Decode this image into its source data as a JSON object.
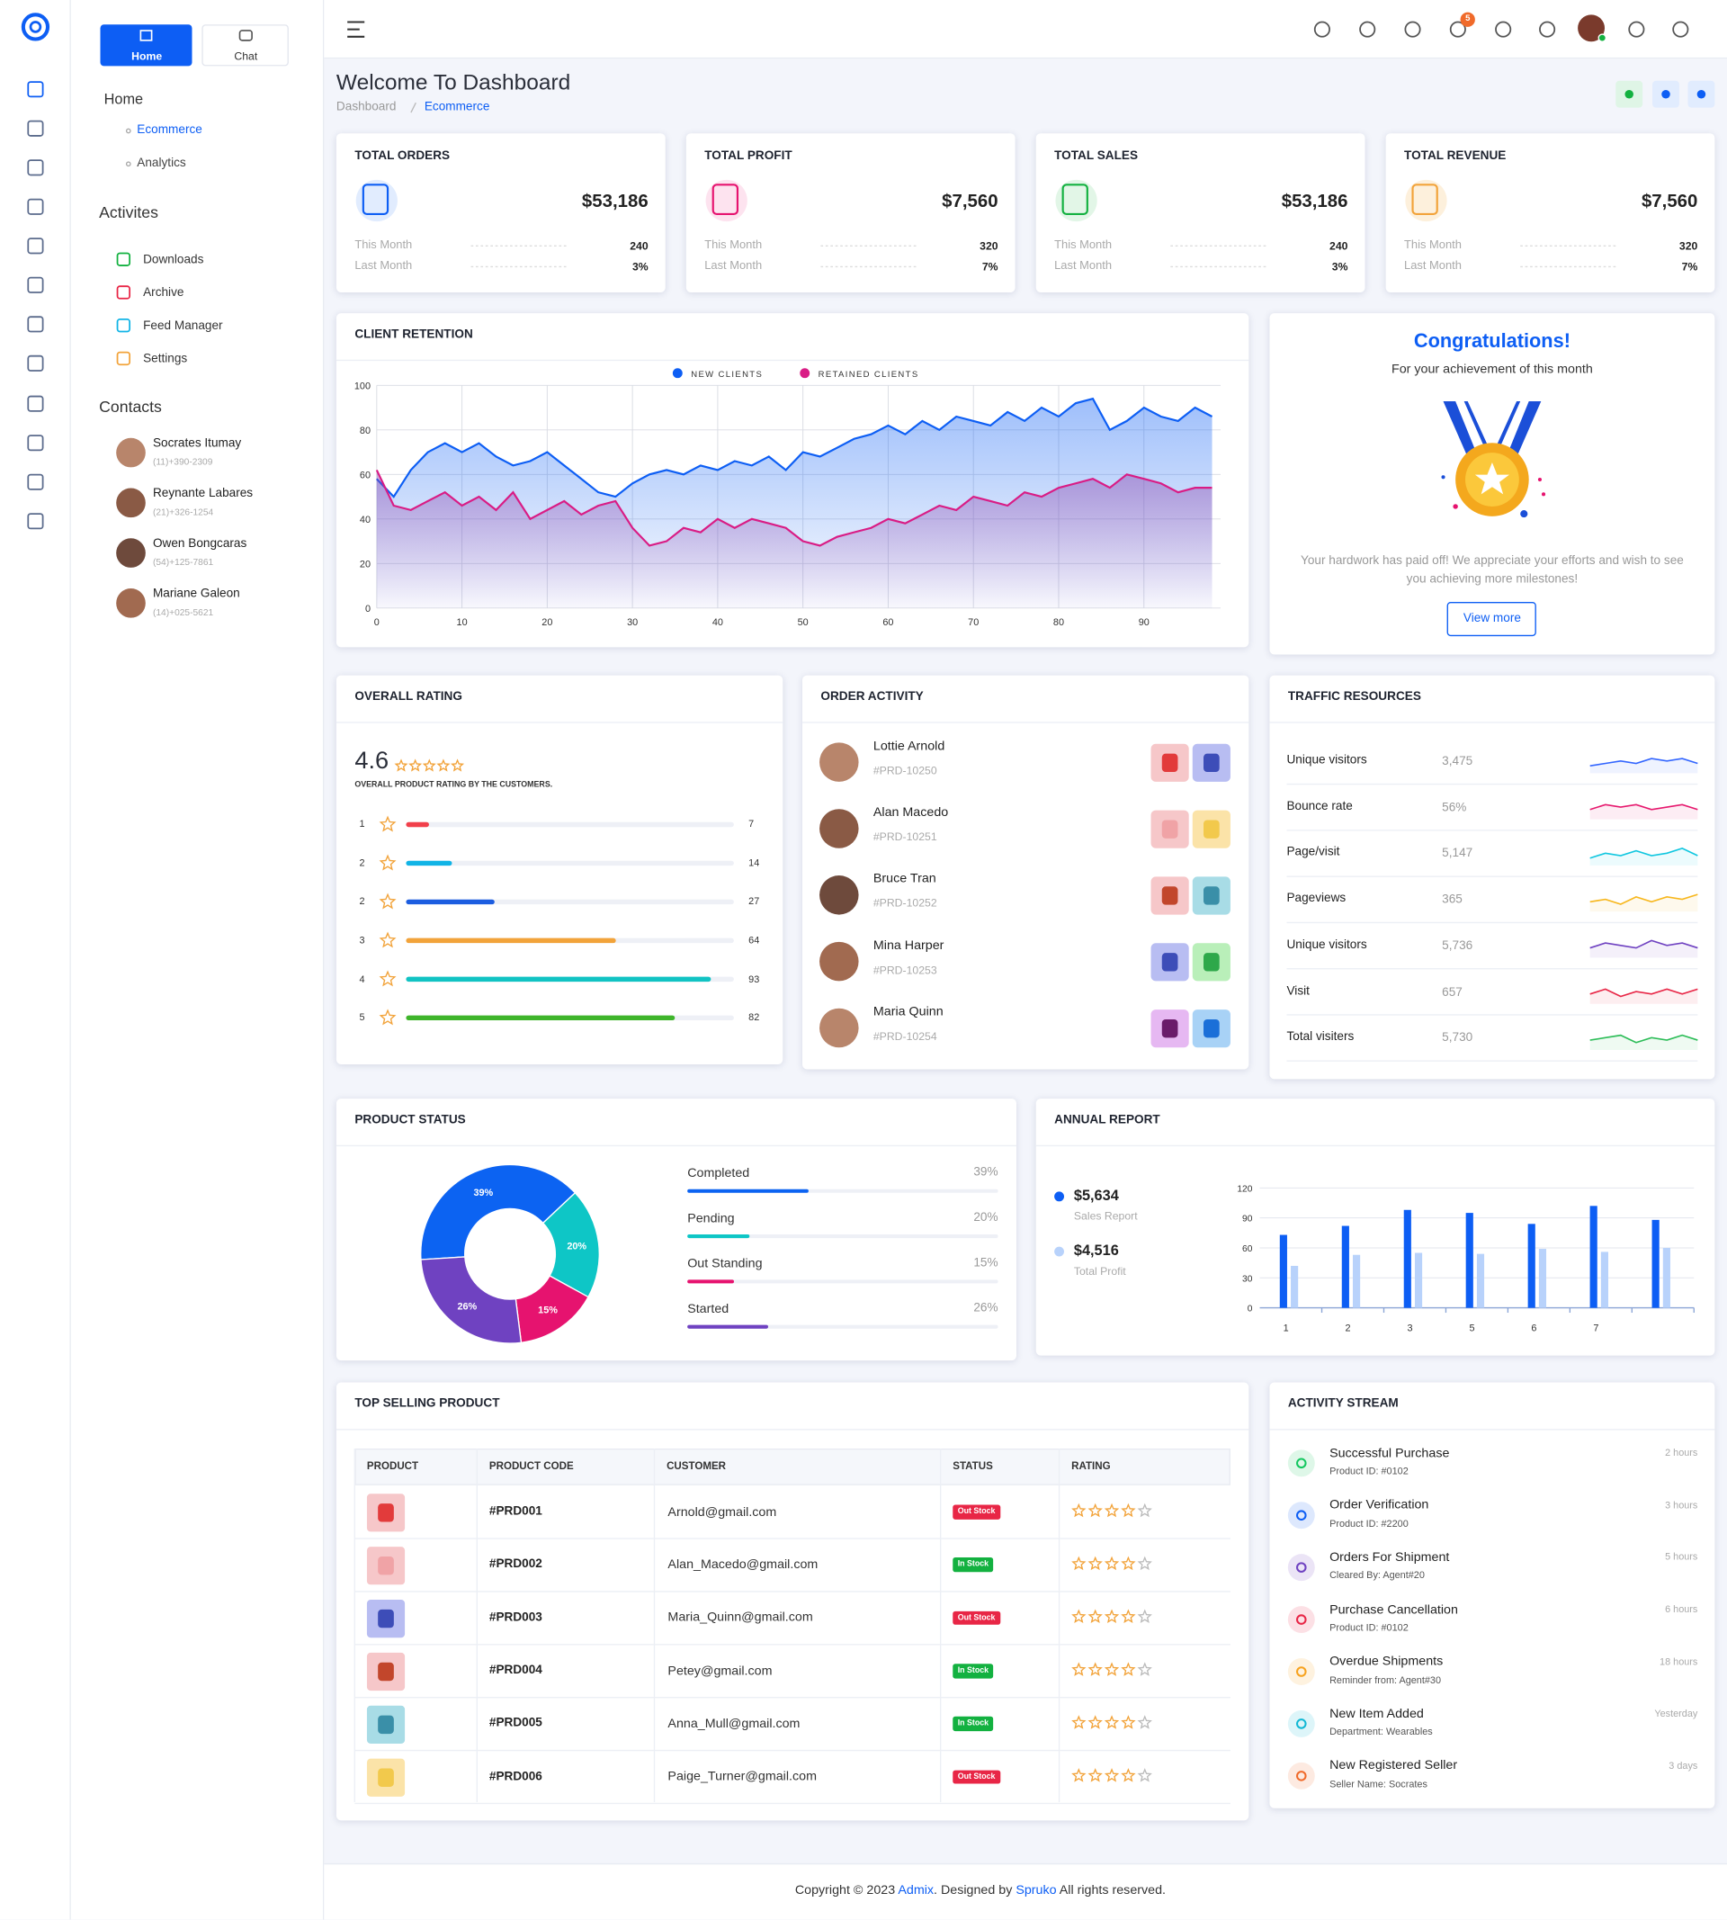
{
  "sidebar": {
    "tabs": [
      "Home",
      "Chat"
    ],
    "home_title": "Home",
    "home_items": [
      "Ecommerce",
      "Analytics"
    ],
    "activities_title": "Activites",
    "activities": [
      "Downloads",
      "Archive",
      "Feed Manager",
      "Settings"
    ],
    "contacts_title": "Contacts",
    "contacts": [
      {
        "name": "Socrates Itumay",
        "phone": "(11)+390-2309"
      },
      {
        "name": "Reynante Labares",
        "phone": "(21)+326-1254"
      },
      {
        "name": "Owen Bongcaras",
        "phone": "(54)+125-7861"
      },
      {
        "name": "Mariane Galeon",
        "phone": "(14)+025-5621"
      }
    ]
  },
  "header": {
    "cart_badge": "5"
  },
  "page": {
    "title": "Welcome To Dashboard",
    "breadcrumb": [
      "Dashboard",
      "Ecommerce"
    ]
  },
  "stats": [
    {
      "title": "TOTAL ORDERS",
      "value": "$53,186",
      "rows": [
        {
          "label": "This Month",
          "value": "240"
        },
        {
          "label": "Last Month",
          "value": "3%"
        }
      ]
    },
    {
      "title": "TOTAL PROFIT",
      "value": "$7,560",
      "rows": [
        {
          "label": "This Month",
          "value": "320"
        },
        {
          "label": "Last Month",
          "value": "7%"
        }
      ]
    },
    {
      "title": "TOTAL SALES",
      "value": "$53,186",
      "rows": [
        {
          "label": "This Month",
          "value": "240"
        },
        {
          "label": "Last Month",
          "value": "3%"
        }
      ]
    },
    {
      "title": "TOTAL REVENUE",
      "value": "$7,560",
      "rows": [
        {
          "label": "This Month",
          "value": "320"
        },
        {
          "label": "Last Month",
          "value": "7%"
        }
      ]
    }
  ],
  "congrats": {
    "title": "Congratulations!",
    "subtitle": "For your achievement of this month",
    "text": "Your hardwork has paid off! We appreciate your efforts and wish to see you achieving more milestones!",
    "button": "View more"
  },
  "overall_rating": {
    "title": "OVERALL RATING",
    "score": "4.6",
    "caption": "OVERALL PRODUCT RATING BY THE CUSTOMERS."
  },
  "order_activity": {
    "title": "ORDER ACTIVITY",
    "orders": [
      {
        "name": "Lottie Arnold",
        "code": "#PRD-10250"
      },
      {
        "name": "Alan Macedo",
        "code": "#PRD-10251"
      },
      {
        "name": "Bruce Tran",
        "code": "#PRD-10252"
      },
      {
        "name": "Mina Harper",
        "code": "#PRD-10253"
      },
      {
        "name": "Maria Quinn",
        "code": "#PRD-10254"
      }
    ]
  },
  "traffic": {
    "title": "TRAFFIC RESOURCES",
    "rows": [
      {
        "label": "Unique visitors",
        "value": "3,475"
      },
      {
        "label": "Bounce rate",
        "value": "56%"
      },
      {
        "label": "Page/visit",
        "value": "5,147"
      },
      {
        "label": "Pageviews",
        "value": "365"
      },
      {
        "label": "Unique visitors",
        "value": "5,736"
      },
      {
        "label": "Visit",
        "value": "657"
      },
      {
        "label": "Total visiters",
        "value": "5,730"
      }
    ]
  },
  "top_selling": {
    "title": "TOP SELLING PRODUCT",
    "columns": [
      "PRODUCT",
      "PRODUCT CODE",
      "CUSTOMER",
      "STATUS",
      "RATING"
    ],
    "rows": [
      {
        "code": "#PRD001",
        "customer": "Arnold@gmail.com",
        "status": "Out Stock",
        "status_color": "#e82646"
      },
      {
        "code": "#PRD002",
        "customer": "Alan_Macedo@gmail.com",
        "status": "In Stock",
        "status_color": "#13b140"
      },
      {
        "code": "#PRD003",
        "customer": "Maria_Quinn@gmail.com",
        "status": "Out Stock",
        "status_color": "#e82646"
      },
      {
        "code": "#PRD004",
        "customer": "Petey@gmail.com",
        "status": "In Stock",
        "status_color": "#13b140"
      },
      {
        "code": "#PRD005",
        "customer": "Anna_Mull@gmail.com",
        "status": "In Stock",
        "status_color": "#13b140"
      },
      {
        "code": "#PRD006",
        "customer": "Paige_Turner@gmail.com",
        "status": "Out Stock",
        "status_color": "#e82646"
      }
    ]
  },
  "activity_stream": {
    "title": "ACTIVITY STREAM",
    "items": [
      {
        "title": "Successful Purchase",
        "detail": "Product ID: #0102",
        "time": "2 hours",
        "color": "#13c75f"
      },
      {
        "title": "Order Verification",
        "detail": "Product ID: #2200",
        "time": "3 hours",
        "color": "#0d5ef4"
      },
      {
        "title": "Orders For Shipment",
        "detail": "Cleared By: Agent#20",
        "time": "5 hours",
        "color": "#6f42c1"
      },
      {
        "title": "Purchase Cancellation",
        "detail": "Product ID: #0102",
        "time": "6 hours",
        "color": "#e82646"
      },
      {
        "title": "Overdue Shipments",
        "detail": "Reminder from: Agent#30",
        "time": "18 hours",
        "color": "#f7a21d"
      },
      {
        "title": "New Item Added",
        "detail": "Department: Wearables",
        "time": "Yesterday",
        "color": "#11b8d4"
      },
      {
        "title": "New Registered Seller",
        "detail": "Seller Name: Socrates",
        "time": "3 days",
        "color": "#f06a2a"
      }
    ]
  },
  "footer": {
    "parts": [
      "Copyright © 2023 ",
      "Admix",
      ". Designed by ",
      "Spruko",
      " All rights reserved."
    ]
  },
  "chart_data": [
    {
      "type": "area",
      "title": "CLIENT RETENTION",
      "x": [
        0,
        2,
        4,
        6,
        8,
        10,
        12,
        14,
        16,
        18,
        20,
        22,
        24,
        26,
        28,
        30,
        32,
        34,
        36,
        38,
        40,
        42,
        44,
        46,
        48,
        50,
        52,
        54,
        56,
        58,
        60,
        62,
        64,
        66,
        68,
        70,
        72,
        74,
        76,
        78,
        80,
        82,
        84,
        86,
        88,
        90,
        92,
        94,
        96,
        98
      ],
      "xlim": [
        0,
        99
      ],
      "xticks": [
        0,
        10,
        20,
        30,
        40,
        50,
        60,
        70,
        80,
        90
      ],
      "ylim": [
        0,
        100
      ],
      "yticks": [
        0,
        20,
        40,
        60,
        80,
        100
      ],
      "grid": true,
      "legend": "top",
      "series": [
        {
          "name": "NEW CLIENTS",
          "color": "#0d5ef4",
          "values": [
            58,
            50,
            62,
            70,
            74,
            70,
            74,
            68,
            64,
            66,
            70,
            64,
            58,
            52,
            50,
            56,
            60,
            62,
            60,
            64,
            62,
            66,
            64,
            68,
            62,
            70,
            68,
            72,
            76,
            78,
            82,
            78,
            84,
            80,
            86,
            84,
            82,
            88,
            84,
            90,
            86,
            92,
            94,
            80,
            84,
            90,
            86,
            84,
            90,
            86
          ]
        },
        {
          "name": "RETAINED CLIENTS",
          "color": "#d91c85",
          "values": [
            62,
            46,
            44,
            48,
            52,
            46,
            50,
            44,
            52,
            40,
            44,
            48,
            42,
            46,
            48,
            36,
            28,
            30,
            36,
            34,
            40,
            36,
            40,
            38,
            36,
            30,
            28,
            32,
            34,
            36,
            40,
            38,
            42,
            46,
            44,
            50,
            48,
            46,
            52,
            50,
            54,
            56,
            58,
            54,
            60,
            58,
            56,
            52,
            54,
            54
          ]
        }
      ]
    },
    {
      "type": "hbar",
      "categories": [
        "1",
        "2",
        "2",
        "3",
        "4",
        "5"
      ],
      "values": [
        7,
        14,
        27,
        64,
        93,
        82
      ],
      "colors": [
        "#f1404b",
        "#11b4e6",
        "#1c5de0",
        "#f2a33a",
        "#11c3c3",
        "#3fb52b"
      ],
      "xlim": [
        0,
        100
      ]
    },
    {
      "type": "donut",
      "title": "PRODUCT STATUS",
      "categories": [
        "Completed",
        "Pending",
        "Out Standing",
        "Started"
      ],
      "values": [
        39,
        20,
        15,
        26
      ],
      "value_labels": [
        "39%",
        "20%",
        "15%",
        "26%"
      ],
      "colors": [
        "#0c63f2",
        "#0ec6c6",
        "#e6136f",
        "#6f42c1"
      ]
    },
    {
      "type": "bar",
      "title": "ANNUAL REPORT",
      "categories": [
        "1",
        "2",
        "3",
        "5",
        "6",
        "7",
        null
      ],
      "ylim": [
        0,
        120
      ],
      "yticks": [
        0,
        30,
        60,
        90,
        120
      ],
      "grid": true,
      "series": [
        {
          "name": "Sales Report",
          "total": "$5,634",
          "color": "#0d5ef4",
          "values": [
            73,
            82,
            98,
            95,
            84,
            102,
            88
          ]
        },
        {
          "name": "Total Profit",
          "total": "$4,516",
          "color": "#b8d2fb",
          "values": [
            42,
            53,
            55,
            54,
            59,
            56,
            60
          ]
        }
      ]
    },
    {
      "type": "line",
      "color": "#3366ff",
      "ylim": [
        0,
        10
      ],
      "values": [
        3,
        4,
        5,
        4,
        6,
        5,
        6,
        4
      ]
    },
    {
      "type": "line",
      "color": "#e6196e",
      "ylim": [
        0,
        10
      ],
      "values": [
        4,
        6,
        5,
        6,
        4,
        5,
        6,
        4
      ]
    },
    {
      "type": "line",
      "color": "#11c7e0",
      "ylim": [
        0,
        10
      ],
      "values": [
        3,
        5,
        4,
        6,
        4,
        5,
        7,
        4
      ]
    },
    {
      "type": "line",
      "color": "#f7b71d",
      "ylim": [
        0,
        10
      ],
      "values": [
        4,
        5,
        3,
        6,
        4,
        6,
        5,
        7
      ]
    },
    {
      "type": "line",
      "color": "#6f42c1",
      "ylim": [
        0,
        10
      ],
      "values": [
        4,
        6,
        5,
        4,
        7,
        5,
        6,
        4
      ]
    },
    {
      "type": "line",
      "color": "#e82646",
      "ylim": [
        0,
        10
      ],
      "values": [
        4,
        6,
        3,
        5,
        4,
        6,
        4,
        6
      ]
    },
    {
      "type": "line",
      "color": "#2ebd59",
      "ylim": [
        0,
        10
      ],
      "values": [
        4,
        5,
        6,
        3,
        5,
        4,
        6,
        4
      ]
    }
  ]
}
